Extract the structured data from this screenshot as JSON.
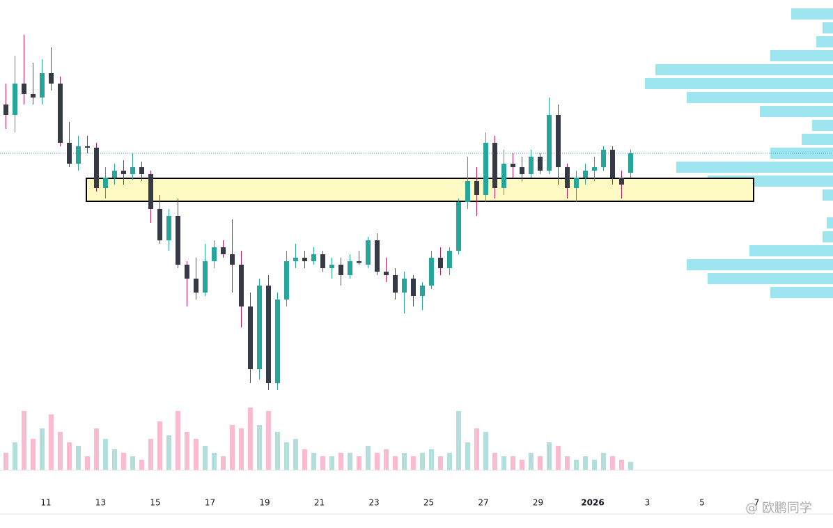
{
  "chart_data": {
    "type": "candlestick",
    "x_labels": [
      "11",
      "13",
      "15",
      "17",
      "19",
      "21",
      "23",
      "25",
      "27",
      "29",
      "2026",
      "3",
      "5",
      "7"
    ],
    "ohlc": [
      [
        90,
        96,
        83,
        87
      ],
      [
        87,
        104,
        82,
        96
      ],
      [
        96,
        110,
        90,
        93
      ],
      [
        93,
        102,
        90,
        92
      ],
      [
        92,
        103,
        90,
        99
      ],
      [
        99,
        106.4,
        94,
        96
      ],
      [
        96,
        98,
        78,
        79
      ],
      [
        79,
        85,
        72,
        73
      ],
      [
        73,
        81,
        71,
        78
      ],
      [
        78,
        81,
        76,
        77.6
      ],
      [
        77.6,
        79,
        65,
        66
      ],
      [
        66,
        72,
        63,
        69
      ],
      [
        69,
        73,
        67,
        71
      ],
      [
        71,
        74,
        67,
        70
      ],
      [
        70,
        76,
        68.4,
        72
      ],
      [
        72,
        73.6,
        68,
        70
      ],
      [
        70,
        71,
        56,
        60
      ],
      [
        60,
        64,
        50,
        51
      ],
      [
        51,
        60,
        48,
        58
      ],
      [
        58,
        63,
        43,
        44
      ],
      [
        44,
        45,
        32,
        40
      ],
      [
        40,
        46,
        34,
        36
      ],
      [
        36,
        50,
        35,
        45
      ],
      [
        45,
        51,
        43,
        49
      ],
      [
        49,
        51,
        46,
        47
      ],
      [
        47,
        57,
        36,
        44
      ],
      [
        44,
        48,
        26,
        32
      ],
      [
        32,
        36,
        10,
        14
      ],
      [
        14,
        40,
        11,
        38
      ],
      [
        38,
        41,
        8,
        10
      ],
      [
        10,
        36,
        8,
        34
      ],
      [
        34,
        48,
        32,
        45
      ],
      [
        45,
        50,
        43,
        46
      ],
      [
        46,
        48,
        43,
        45
      ],
      [
        45,
        49,
        44,
        47
      ],
      [
        47,
        48,
        42,
        43
      ],
      [
        43,
        46,
        40,
        44
      ],
      [
        44,
        46,
        38,
        41
      ],
      [
        41,
        47,
        40,
        45
      ],
      [
        45,
        48,
        44,
        44.5
      ],
      [
        44,
        52,
        43,
        51
      ],
      [
        51,
        53,
        41,
        42
      ],
      [
        42,
        46,
        39,
        41
      ],
      [
        41,
        43,
        34,
        36
      ],
      [
        36,
        42,
        30,
        40
      ],
      [
        40,
        41,
        32,
        35
      ],
      [
        35,
        39,
        31,
        38
      ],
      [
        38,
        48,
        37,
        46
      ],
      [
        46,
        49,
        41,
        43
      ],
      [
        43,
        49,
        41,
        48
      ],
      [
        48,
        63,
        47,
        62
      ],
      [
        62,
        75,
        60,
        68
      ],
      [
        68,
        72,
        58,
        64
      ],
      [
        64,
        82,
        62,
        79
      ],
      [
        79,
        81,
        63,
        66
      ],
      [
        66,
        77,
        64,
        73
      ],
      [
        73,
        76,
        69,
        72
      ],
      [
        72,
        75,
        68,
        70
      ],
      [
        70,
        77,
        69,
        75
      ],
      [
        75,
        76,
        70,
        71
      ],
      [
        71,
        92,
        70,
        87
      ],
      [
        87,
        90,
        67,
        72
      ],
      [
        72,
        73,
        63,
        66
      ],
      [
        66,
        71,
        62,
        69
      ],
      [
        69,
        73,
        67,
        71
      ],
      [
        71,
        75,
        68,
        72
      ],
      [
        72,
        78,
        71,
        77
      ],
      [
        77,
        78,
        67,
        69
      ],
      [
        69,
        71,
        63,
        67
      ],
      [
        70.4,
        77,
        69,
        76
      ]
    ],
    "volume": [
      25,
      40,
      85,
      45,
      60,
      80,
      55,
      40,
      35,
      20,
      60,
      45,
      30,
      25,
      20,
      15,
      45,
      70,
      50,
      85,
      55,
      45,
      35,
      25,
      20,
      65,
      60,
      90,
      65,
      85,
      55,
      40,
      45,
      30,
      25,
      20,
      20,
      25,
      25,
      20,
      35,
      25,
      30,
      20,
      25,
      20,
      25,
      30,
      20,
      25,
      85,
      40,
      60,
      55,
      25,
      20,
      20,
      15,
      25,
      20,
      40,
      35,
      20,
      15,
      20,
      15,
      25,
      20,
      15,
      12
    ],
    "ylim": [
      0,
      120
    ],
    "volume_lim": [
      0,
      100
    ],
    "zone": {
      "top": 68.8,
      "bottom": 62.2
    },
    "profile": {
      "levels": [
        116,
        112,
        108,
        104,
        100,
        96,
        92,
        88,
        84,
        80,
        76,
        72,
        68,
        64,
        56,
        52,
        48,
        44,
        40,
        36
      ],
      "volumes": [
        20,
        5,
        8,
        30,
        85,
        90,
        70,
        35,
        10,
        15,
        30,
        75,
        60,
        5,
        3,
        5,
        40,
        70,
        60,
        30
      ]
    },
    "colors": {
      "up": "#26a69a",
      "down": "#363a45",
      "vol_up": "#b2dfdb",
      "vol_down": "#f8bbd0",
      "profile": "#4dd0e1",
      "zone": "#fff9c4"
    },
    "watermark": "@ 欧鹏同学"
  }
}
